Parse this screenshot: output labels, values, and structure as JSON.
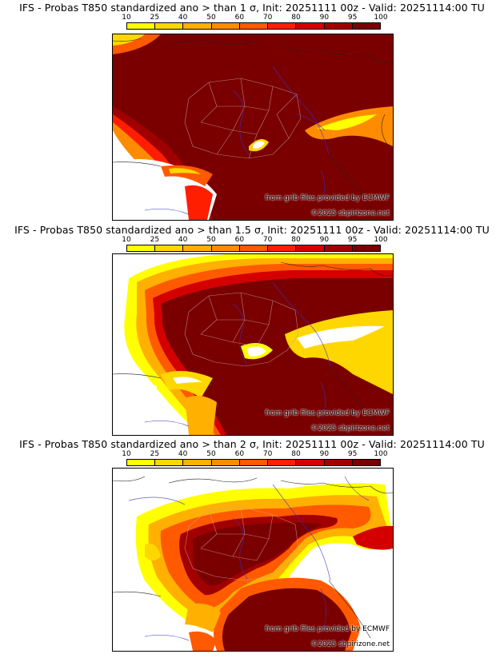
{
  "panels": [
    {
      "title": "IFS - Probas T850  standardized ano > than 1 σ, Init: 20251111 00z - Valid: 20251114:00 TU",
      "level": 1
    },
    {
      "title": "IFS - Probas T850  standardized ano > than 1.5 σ, Init: 20251111 00z - Valid: 20251114:00 TU",
      "level": 2
    },
    {
      "title": "IFS - Probas T850  standardized ano > than 2 σ, Init: 20251111 00z - Valid: 20251114:00 TU",
      "level": 3
    }
  ],
  "colorbar": {
    "ticks": [
      "10",
      "25",
      "40",
      "50",
      "60",
      "70",
      "80",
      "90",
      "95",
      "100"
    ],
    "colors": [
      "#ffff00",
      "#ffd700",
      "#ffb000",
      "#ff8c00",
      "#ff5a00",
      "#ff1e00",
      "#d40000",
      "#a00000",
      "#7a0000"
    ]
  },
  "credits": {
    "source": "from grib files provided by ECMWF",
    "copyright": "©2025 sbpirizone.net"
  }
}
